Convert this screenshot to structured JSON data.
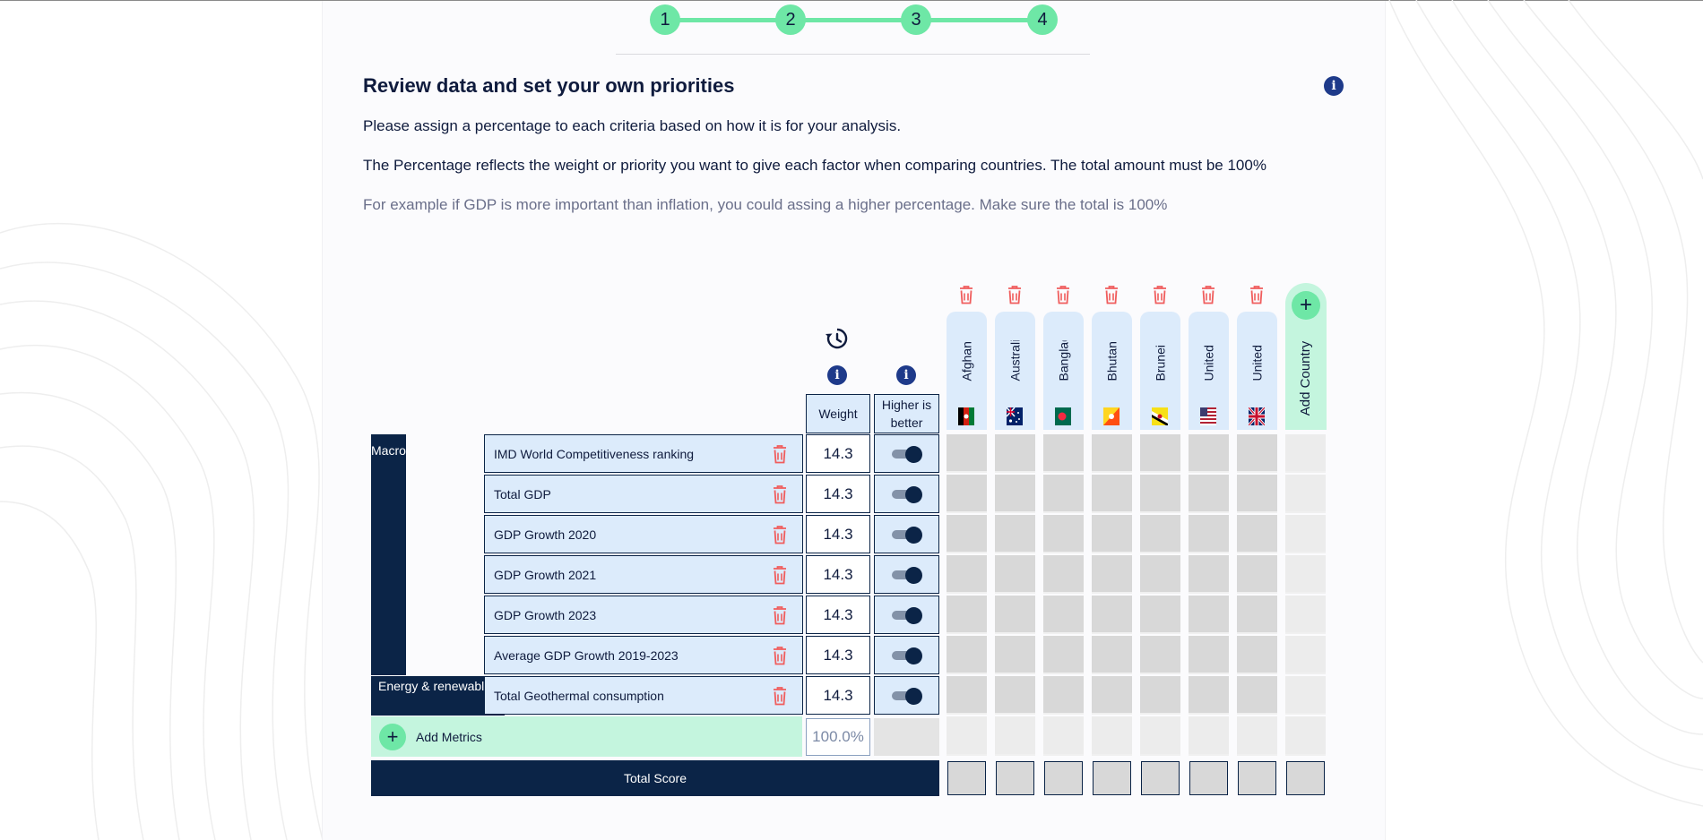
{
  "stepper": {
    "steps": [
      "1",
      "2",
      "3",
      "4"
    ],
    "accent": "#6ee7a6"
  },
  "header": {
    "title": "Review data and set your own priorities",
    "info_icon": "info-icon"
  },
  "instructions": {
    "line1": "Please assign a percentage to each criteria based on how it is for your analysis.",
    "line2": "The Percentage reflects the weight or priority you want to give each factor when comparing countries. The total amount must be 100%",
    "line3": "For example if GDP is more important than inflation, you could assing a higher percentage. Make sure the total is 100%"
  },
  "table": {
    "weight_header": "Weight",
    "higher_header": "Higher is better",
    "countries": [
      {
        "name": "Afghanistan",
        "flag": "flag-afghanistan-icon"
      },
      {
        "name": "Australia",
        "flag": "flag-australia-icon"
      },
      {
        "name": "Bangladesh",
        "flag": "flag-bangladesh-icon"
      },
      {
        "name": "Bhutan",
        "flag": "flag-bhutan-icon"
      },
      {
        "name": "Brunei Darussalam",
        "flag": "flag-brunei-icon"
      },
      {
        "name": "United States",
        "flag": "flag-united-states-icon"
      },
      {
        "name": "United Kingdom",
        "flag": "flag-united-kingdom-icon"
      }
    ],
    "add_country_label": "Add Country",
    "categories": [
      {
        "name": "Macro",
        "rows": 6
      },
      {
        "name": "Energy & renewables",
        "rows": 1
      }
    ],
    "metrics": [
      {
        "name": "IMD World Competitiveness ranking",
        "weight": "14.3",
        "higher_is_better": true
      },
      {
        "name": "Total GDP",
        "weight": "14.3",
        "higher_is_better": true
      },
      {
        "name": "GDP Growth 2020",
        "weight": "14.3",
        "higher_is_better": true
      },
      {
        "name": "GDP Growth 2021",
        "weight": "14.3",
        "higher_is_better": true
      },
      {
        "name": "GDP Growth 2023",
        "weight": "14.3",
        "higher_is_better": true
      },
      {
        "name": "Average GDP Growth 2019-2023",
        "weight": "14.3",
        "higher_is_better": true
      },
      {
        "name": "Total Geothermal consumption",
        "weight": "14.3",
        "higher_is_better": true
      }
    ],
    "add_metrics_label": "Add Metrics",
    "total_weight": "100.0%",
    "total_score_label": "Total Score"
  }
}
